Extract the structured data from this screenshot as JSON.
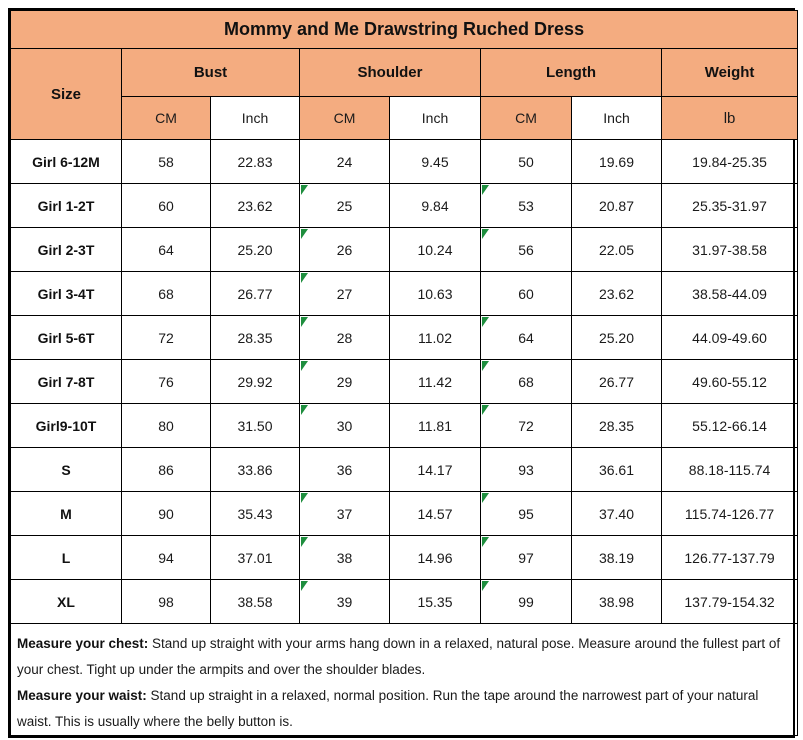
{
  "title": "Mommy and Me Drawstring Ruched Dress",
  "colors": {
    "header_fill": "#F4AC80",
    "border": "#000000",
    "corner_marker_green": "#1E8E3E",
    "text": "#1a1a1a"
  },
  "header": {
    "size": "Size",
    "bust": "Bust",
    "shoulder": "Shoulder",
    "length": "Length",
    "weight": "Weight",
    "cm": "CM",
    "inch": "Inch",
    "lb": "lb"
  },
  "table": {
    "rows": [
      {
        "size": "Girl 6-12M",
        "bust_cm": "58",
        "bust_in": "22.83",
        "shoulder_cm": "24",
        "shoulder_in": "9.45",
        "length_cm": "50",
        "length_in": "19.69",
        "weight": "19.84-25.35",
        "marks": []
      },
      {
        "size": "Girl 1-2T",
        "bust_cm": "60",
        "bust_in": "23.62",
        "shoulder_cm": "25",
        "shoulder_in": "9.84",
        "length_cm": "53",
        "length_in": "20.87",
        "weight": "25.35-31.97",
        "marks": [
          "shoulder_cm",
          "length_cm"
        ]
      },
      {
        "size": "Girl 2-3T",
        "bust_cm": "64",
        "bust_in": "25.20",
        "shoulder_cm": "26",
        "shoulder_in": "10.24",
        "length_cm": "56",
        "length_in": "22.05",
        "weight": "31.97-38.58",
        "marks": [
          "shoulder_cm",
          "length_cm"
        ]
      },
      {
        "size": "Girl 3-4T",
        "bust_cm": "68",
        "bust_in": "26.77",
        "shoulder_cm": "27",
        "shoulder_in": "10.63",
        "length_cm": "60",
        "length_in": "23.62",
        "weight": "38.58-44.09",
        "marks": [
          "shoulder_cm"
        ]
      },
      {
        "size": "Girl 5-6T",
        "bust_cm": "72",
        "bust_in": "28.35",
        "shoulder_cm": "28",
        "shoulder_in": "11.02",
        "length_cm": "64",
        "length_in": "25.20",
        "weight": "44.09-49.60",
        "marks": [
          "shoulder_cm",
          "length_cm"
        ]
      },
      {
        "size": "Girl 7-8T",
        "bust_cm": "76",
        "bust_in": "29.92",
        "shoulder_cm": "29",
        "shoulder_in": "11.42",
        "length_cm": "68",
        "length_in": "26.77",
        "weight": "49.60-55.12",
        "marks": [
          "shoulder_cm",
          "length_cm"
        ]
      },
      {
        "size": "Girl9-10T",
        "bust_cm": "80",
        "bust_in": "31.50",
        "shoulder_cm": "30",
        "shoulder_in": "11.81",
        "length_cm": "72",
        "length_in": "28.35",
        "weight": "55.12-66.14",
        "marks": [
          "shoulder_cm",
          "length_cm"
        ]
      },
      {
        "size": "S",
        "bust_cm": "86",
        "bust_in": "33.86",
        "shoulder_cm": "36",
        "shoulder_in": "14.17",
        "length_cm": "93",
        "length_in": "36.61",
        "weight": "88.18-115.74",
        "marks": []
      },
      {
        "size": "M",
        "bust_cm": "90",
        "bust_in": "35.43",
        "shoulder_cm": "37",
        "shoulder_in": "14.57",
        "length_cm": "95",
        "length_in": "37.40",
        "weight": "115.74-126.77",
        "marks": [
          "shoulder_cm",
          "length_cm"
        ]
      },
      {
        "size": "L",
        "bust_cm": "94",
        "bust_in": "37.01",
        "shoulder_cm": "38",
        "shoulder_in": "14.96",
        "length_cm": "97",
        "length_in": "38.19",
        "weight": "126.77-137.79",
        "marks": [
          "shoulder_cm",
          "length_cm"
        ]
      },
      {
        "size": "XL",
        "bust_cm": "98",
        "bust_in": "38.58",
        "shoulder_cm": "39",
        "shoulder_in": "15.35",
        "length_cm": "99",
        "length_in": "38.98",
        "weight": "137.79-154.32",
        "marks": [
          "shoulder_cm",
          "length_cm"
        ]
      }
    ]
  },
  "notes": [
    {
      "bold": "Measure your chest:",
      "text": " Stand up straight with your arms hang down in a relaxed, natural pose. Measure around the fullest part of your chest. Tight up under the armpits and over the shoulder blades."
    },
    {
      "bold": "Measure your waist:",
      "text": " Stand up straight in a relaxed, normal position. Run the tape around the narrowest part of your natural waist. This is usually where the belly button is."
    }
  ],
  "chart_data": {
    "type": "table",
    "title": "Mommy and Me Drawstring Ruched Dress",
    "columns": [
      "Size",
      "Bust CM",
      "Bust Inch",
      "Shoulder CM",
      "Shoulder Inch",
      "Length CM",
      "Length Inch",
      "Weight lb"
    ],
    "rows": [
      [
        "Girl 6-12M",
        58,
        22.83,
        24,
        9.45,
        50,
        19.69,
        "19.84-25.35"
      ],
      [
        "Girl 1-2T",
        60,
        23.62,
        25,
        9.84,
        53,
        20.87,
        "25.35-31.97"
      ],
      [
        "Girl 2-3T",
        64,
        25.2,
        26,
        10.24,
        56,
        22.05,
        "31.97-38.58"
      ],
      [
        "Girl 3-4T",
        68,
        26.77,
        27,
        10.63,
        60,
        23.62,
        "38.58-44.09"
      ],
      [
        "Girl 5-6T",
        72,
        28.35,
        28,
        11.02,
        64,
        25.2,
        "44.09-49.60"
      ],
      [
        "Girl 7-8T",
        76,
        29.92,
        29,
        11.42,
        68,
        26.77,
        "49.60-55.12"
      ],
      [
        "Girl9-10T",
        80,
        31.5,
        30,
        11.81,
        72,
        28.35,
        "55.12-66.14"
      ],
      [
        "S",
        86,
        33.86,
        36,
        14.17,
        93,
        36.61,
        "88.18-115.74"
      ],
      [
        "M",
        90,
        35.43,
        37,
        14.57,
        95,
        37.4,
        "115.74-126.77"
      ],
      [
        "L",
        94,
        37.01,
        38,
        14.96,
        97,
        38.19,
        "126.77-137.79"
      ],
      [
        "XL",
        98,
        38.58,
        39,
        15.35,
        99,
        38.98,
        "137.79-154.32"
      ]
    ]
  }
}
